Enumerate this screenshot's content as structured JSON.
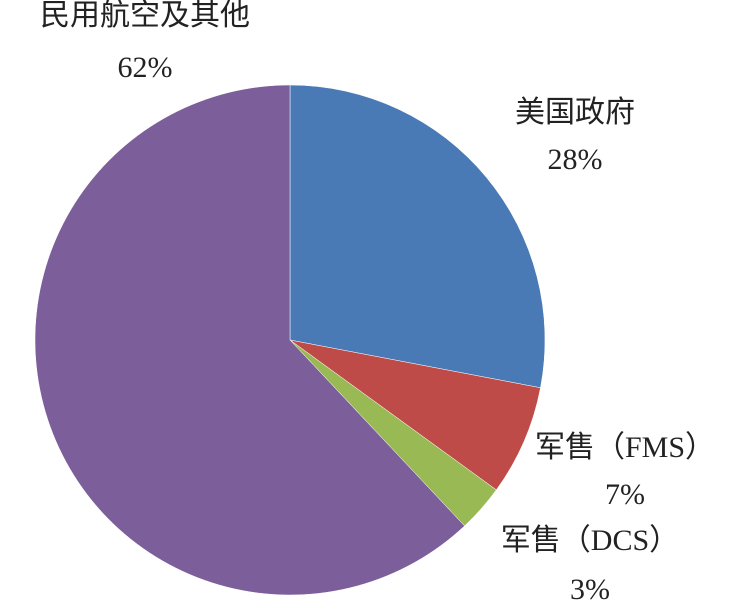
{
  "chart_data": {
    "type": "pie",
    "categories": [
      "美国政府",
      "军售（FMS）",
      "军售（DCS）",
      "民用航空及其他"
    ],
    "values": [
      28,
      7,
      3,
      62
    ],
    "value_labels": [
      "28%",
      "7%",
      "3%",
      "62%"
    ],
    "colors": [
      "#4a7ab5",
      "#be4b48",
      "#98b954",
      "#7c5f9a"
    ]
  }
}
